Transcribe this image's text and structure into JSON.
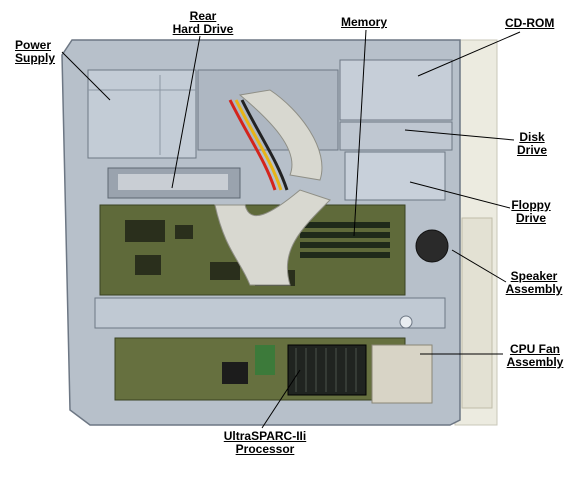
{
  "labels": {
    "power_supply": [
      "Power",
      "Supply"
    ],
    "rear_hard_drive": [
      "Rear",
      "Hard Drive"
    ],
    "memory": [
      "Memory"
    ],
    "cd_rom": [
      "CD-ROM"
    ],
    "disk_drive": [
      "Disk",
      "Drive"
    ],
    "floppy_drive": [
      "Floppy",
      "Drive"
    ],
    "speaker_assembly": [
      "Speaker",
      "Assembly"
    ],
    "cpu_fan_assembly": [
      "CPU Fan",
      "Assembly"
    ],
    "processor": [
      "UltraSPARC-IIi",
      "Processor"
    ]
  },
  "colors": {
    "chassis": "#b7c0ca",
    "chassis_dark": "#7d8794",
    "pcb": "#5f6a3a",
    "cable": "#d8d8d0",
    "leader_line": "#000000"
  }
}
